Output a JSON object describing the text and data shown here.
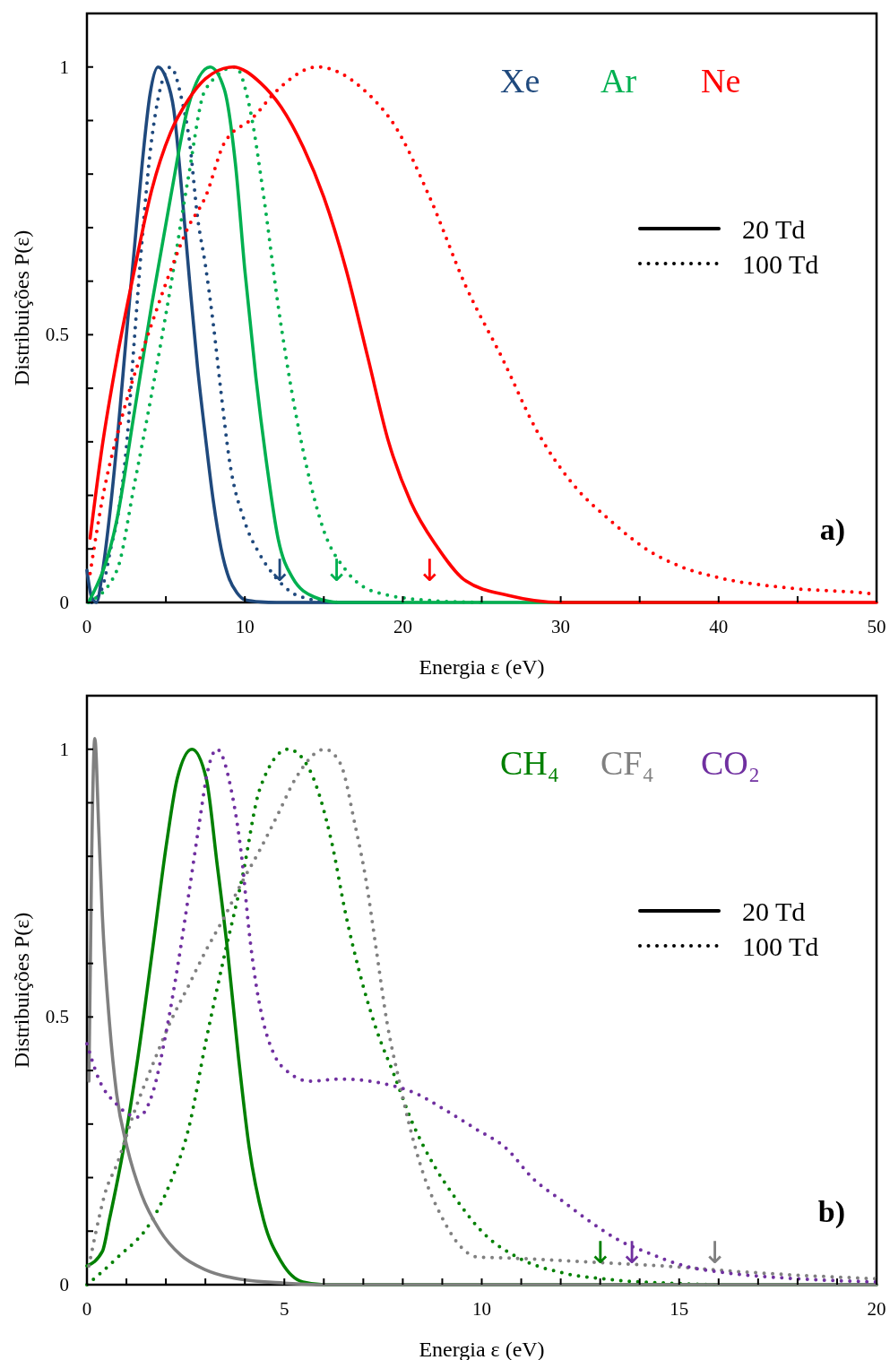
{
  "chart_data": [
    {
      "type": "line",
      "xlabel": "Energia ε (eV)",
      "ylabel": "Distribuições P(ε)",
      "xlim": [
        0,
        50
      ],
      "ylim": [
        0,
        1.1
      ],
      "xticks": [
        0,
        {
          "value": 5,
          "label": null
        },
        10,
        {
          "value": 15,
          "label": null
        },
        20,
        {
          "value": 25,
          "label": null
        },
        30,
        {
          "value": 35,
          "label": null
        },
        40,
        {
          "value": 45,
          "label": null
        },
        50
      ],
      "yticks": [
        0,
        {
          "value": 0.1,
          "label": null
        },
        {
          "value": 0.2,
          "label": null
        },
        {
          "value": 0.3,
          "label": null
        },
        {
          "value": 0.4,
          "label": null
        },
        0.5,
        {
          "value": 0.6,
          "label": null
        },
        {
          "value": 0.7,
          "label": null
        },
        {
          "value": 0.8,
          "label": null
        },
        {
          "value": 0.9,
          "label": null
        },
        1
      ],
      "legend": "top right",
      "grid": false,
      "annotations": [
        "a)",
        "20 Td",
        "100 Td",
        {
          "text": "↓",
          "x": 12.2,
          "y": 0
        },
        {
          "text": "↓",
          "x": 15.8,
          "y": 0
        },
        {
          "text": "↓",
          "x": 21.7,
          "y": 0
        }
      ],
      "series": [
        {
          "name": "Xe",
          "color": "#1f497d",
          "line_style": "solid",
          "x": [
            0,
            0.3,
            0.6,
            1,
            1.5,
            2,
            2.5,
            3,
            3.5,
            4,
            4.5,
            5,
            5.5,
            6,
            6.5,
            7,
            7.5,
            8,
            8.5,
            9,
            9.5,
            10,
            11,
            12,
            15,
            20
          ],
          "values": [
            0.06,
            0.01,
            0,
            0.06,
            0.18,
            0.33,
            0.5,
            0.66,
            0.82,
            0.95,
            1,
            0.98,
            0.92,
            0.77,
            0.6,
            0.44,
            0.31,
            0.19,
            0.1,
            0.045,
            0.018,
            0.005,
            0.001,
            0,
            0,
            0
          ]
        },
        {
          "color": "#1f497d",
          "line_style": "dotted",
          "x": [
            0.3,
            1,
            1.5,
            2,
            2.5,
            3,
            3.5,
            4,
            4.5,
            5.3,
            6,
            6.5,
            7,
            7.5,
            8,
            8.5,
            9,
            10,
            11,
            12,
            13,
            14,
            15,
            16
          ],
          "values": [
            0,
            0.03,
            0.1,
            0.17,
            0.29,
            0.49,
            0.68,
            0.84,
            0.94,
            1,
            0.94,
            0.86,
            0.72,
            0.63,
            0.52,
            0.39,
            0.27,
            0.15,
            0.087,
            0.045,
            0.018,
            0.007,
            0.002,
            0
          ]
        },
        {
          "name": "Ar",
          "color": "#00b050",
          "line_style": "solid",
          "x": [
            0.1,
            1.9,
            3,
            4.1,
            5.3,
            6.4,
            7.8,
            8.7,
            9.4,
            10,
            10.7,
            11.4,
            12.1,
            13,
            14.4,
            16,
            20,
            40
          ],
          "values": [
            0,
            0.155,
            0.355,
            0.556,
            0.757,
            0.925,
            1,
            0.958,
            0.82,
            0.62,
            0.42,
            0.255,
            0.12,
            0.047,
            0.01,
            0,
            0,
            0
          ]
        },
        {
          "color": "#00b050",
          "line_style": "dotted",
          "x": [
            0.1,
            1.9,
            3,
            4.1,
            5.3,
            6.4,
            7.5,
            9.4,
            10.3,
            11.2,
            12.1,
            13,
            13.9,
            15,
            16.4,
            18.2,
            22,
            25
          ],
          "values": [
            0,
            0.06,
            0.22,
            0.39,
            0.59,
            0.79,
            0.958,
            1,
            0.925,
            0.757,
            0.556,
            0.389,
            0.255,
            0.134,
            0.06,
            0.02,
            0.003,
            0
          ]
        },
        {
          "name": "Ne",
          "color": "#ff0000",
          "line_style": "solid",
          "x": [
            0.2,
            0.96,
            1.9,
            3,
            4.1,
            5.3,
            6.4,
            7.5,
            9.25,
            11,
            12.3,
            13.7,
            15,
            16.4,
            17.8,
            19.1,
            20.5,
            22.1,
            24,
            26.7,
            30,
            40,
            50
          ],
          "values": [
            0.12,
            0.29,
            0.456,
            0.62,
            0.77,
            0.878,
            0.938,
            0.978,
            1,
            0.97,
            0.925,
            0.85,
            0.757,
            0.623,
            0.456,
            0.3,
            0.188,
            0.107,
            0.04,
            0.013,
            0,
            0,
            0
          ]
        },
        {
          "color": "#ff0000",
          "line_style": "dotted",
          "x": [
            0.2,
            0.96,
            2.3,
            4.1,
            5.3,
            6.4,
            7.5,
            8.7,
            10.5,
            12.1,
            14.6,
            17.8,
            19.5,
            21.7,
            24,
            26.3,
            28.5,
            30.8,
            33.1,
            35.4,
            37.6,
            39.9,
            44.4,
            49.4,
            50
          ],
          "values": [
            0.054,
            0.19,
            0.355,
            0.52,
            0.62,
            0.7,
            0.757,
            0.858,
            0.905,
            0.958,
            1,
            0.95,
            0.89,
            0.757,
            0.59,
            0.456,
            0.32,
            0.22,
            0.154,
            0.1,
            0.067,
            0.047,
            0.027,
            0.017,
            0.015
          ]
        }
      ]
    },
    {
      "type": "line",
      "xlabel": "Energia ε (eV)",
      "ylabel": "Distribuições P(ε)",
      "xlim": [
        0,
        20
      ],
      "ylim": [
        0,
        1.1
      ],
      "xticks": [
        0,
        {
          "value": 1,
          "label": null
        },
        {
          "value": 2,
          "label": null
        },
        {
          "value": 3,
          "label": null
        },
        {
          "value": 4,
          "label": null
        },
        5,
        {
          "value": 6,
          "label": null
        },
        {
          "value": 7,
          "label": null
        },
        {
          "value": 8,
          "label": null
        },
        {
          "value": 9,
          "label": null
        },
        10,
        {
          "value": 11,
          "label": null
        },
        {
          "value": 12,
          "label": null
        },
        {
          "value": 13,
          "label": null
        },
        {
          "value": 14,
          "label": null
        },
        15,
        {
          "value": 16,
          "label": null
        },
        {
          "value": 17,
          "label": null
        },
        {
          "value": 18,
          "label": null
        },
        {
          "value": 19,
          "label": null
        },
        20
      ],
      "yticks": [
        0,
        {
          "value": 0.1,
          "label": null
        },
        {
          "value": 0.2,
          "label": null
        },
        {
          "value": 0.3,
          "label": null
        },
        {
          "value": 0.4,
          "label": null
        },
        0.5,
        {
          "value": 0.6,
          "label": null
        },
        {
          "value": 0.7,
          "label": null
        },
        {
          "value": 0.8,
          "label": null
        },
        {
          "value": 0.9,
          "label": null
        },
        1
      ],
      "legend": "top right",
      "grid": false,
      "annotations": [
        "b)",
        "20 Td",
        "100 Td",
        {
          "text": "↓",
          "x": 13.0,
          "y": 0
        },
        {
          "text": "↓",
          "x": 15.9,
          "y": 0
        },
        {
          "text": "↓",
          "x": 13.8,
          "y": 0
        }
      ],
      "series": [
        {
          "name": "CH₄",
          "color": "#008000",
          "line_style": "solid",
          "x": [
            0,
            0.39,
            0.57,
            0.93,
            1.29,
            1.66,
            2.02,
            2.29,
            2.66,
            3.02,
            3.29,
            3.56,
            3.84,
            4.11,
            4.47,
            4.93,
            5.47,
            6,
            20
          ],
          "values": [
            0.035,
            0.062,
            0.122,
            0.256,
            0.424,
            0.625,
            0.826,
            0.946,
            1,
            0.946,
            0.79,
            0.625,
            0.424,
            0.256,
            0.122,
            0.042,
            0.005,
            0,
            0
          ]
        },
        {
          "color": "#008000",
          "line_style": "dotted",
          "x": [
            0,
            0.75,
            1.66,
            2.11,
            2.57,
            3.02,
            3.47,
            3.93,
            4.38,
            5.1,
            5.65,
            6.2,
            6.56,
            6.88,
            7.33,
            7.79,
            8.24,
            8.79,
            9.33,
            10.06,
            10.96,
            12.05,
            13.2,
            15,
            16
          ],
          "values": [
            0,
            0.049,
            0.122,
            0.19,
            0.29,
            0.457,
            0.611,
            0.759,
            0.926,
            1,
            0.96,
            0.826,
            0.69,
            0.59,
            0.477,
            0.39,
            0.303,
            0.223,
            0.162,
            0.095,
            0.049,
            0.022,
            0.01,
            0.002,
            0
          ]
        },
        {
          "name": "CF₄",
          "color": "#808080",
          "line_style": "solid",
          "x": [
            0.05,
            0.12,
            0.2,
            0.3,
            0.39,
            0.57,
            0.75,
            1.02,
            1.38,
            1.84,
            2.38,
            3,
            3.9,
            5,
            6,
            20
          ],
          "values": [
            0.38,
            0.8,
            1.02,
            0.85,
            0.69,
            0.49,
            0.357,
            0.256,
            0.169,
            0.102,
            0.055,
            0.028,
            0.01,
            0.003,
            0,
            0
          ]
        },
        {
          "color": "#808080",
          "line_style": "dotted",
          "x": [
            0.05,
            0.2,
            0.48,
            0.75,
            1.2,
            1.66,
            2.11,
            2.57,
            3.02,
            3.47,
            3.93,
            4.38,
            4.84,
            5.29,
            6.02,
            6.42,
            6.79,
            7.06,
            7.33,
            7.6,
            7.88,
            8.15,
            8.51,
            8.97,
            9.42,
            9.87,
            10.96,
            12.78,
            14.6,
            16.4,
            18.2,
            19.7,
            20
          ],
          "values": [
            0.035,
            0.089,
            0.176,
            0.223,
            0.323,
            0.41,
            0.49,
            0.558,
            0.625,
            0.685,
            0.752,
            0.812,
            0.879,
            0.946,
            1,
            0.973,
            0.859,
            0.759,
            0.625,
            0.49,
            0.39,
            0.303,
            0.209,
            0.129,
            0.075,
            0.052,
            0.049,
            0.042,
            0.035,
            0.025,
            0.017,
            0.012,
            0.011
          ]
        },
        {
          "name": "CO₂",
          "color": "#7030a0",
          "line_style": "dotted",
          "x": [
            0,
            0.3,
            0.75,
            1.29,
            1.66,
            2.02,
            2.29,
            2.57,
            2.84,
            3.06,
            3.29,
            3.65,
            3.93,
            4.11,
            4.29,
            4.47,
            4.74,
            5.1,
            5.65,
            6.42,
            7.6,
            8.24,
            9.15,
            9.87,
            10.6,
            11.33,
            12.05,
            12.78,
            13.5,
            14.23,
            15.14,
            16.2,
            17.8,
            20
          ],
          "values": [
            0.45,
            0.384,
            0.337,
            0.313,
            0.357,
            0.477,
            0.591,
            0.725,
            0.859,
            0.96,
            1,
            0.926,
            0.792,
            0.658,
            0.558,
            0.49,
            0.43,
            0.397,
            0.38,
            0.384,
            0.374,
            0.36,
            0.323,
            0.29,
            0.256,
            0.196,
            0.156,
            0.116,
            0.082,
            0.059,
            0.035,
            0.022,
            0.012,
            0.005
          ]
        }
      ]
    }
  ]
}
